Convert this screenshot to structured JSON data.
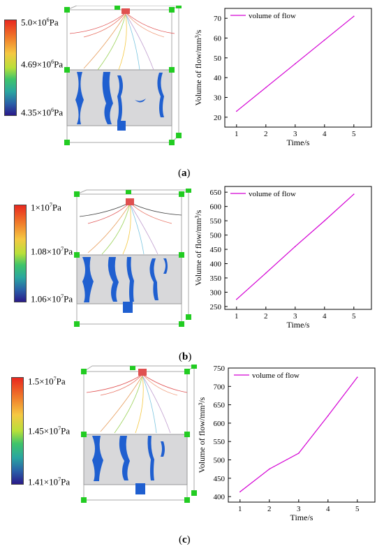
{
  "panels": [
    {
      "label": "(a)",
      "label_letter": "a",
      "colorbar": {
        "top": "5.0×10",
        "top_exp": "6",
        "mid": "4.69×10",
        "mid_exp": "6",
        "bottom": "4.35×10",
        "bottom_exp": "6",
        "unit": "Pa"
      }
    },
    {
      "label": "(b)",
      "label_letter": "b",
      "colorbar": {
        "top": "1×10",
        "top_exp": "7",
        "mid": "1.08×10",
        "mid_exp": "7",
        "bottom": "1.06×10",
        "bottom_exp": "7",
        "unit": "Pa"
      }
    },
    {
      "label": "(c)",
      "label_letter": "c",
      "colorbar": {
        "top": "1.5×10",
        "top_exp": "7",
        "mid": "1.45×10",
        "mid_exp": "7",
        "bottom": "1.41×10",
        "bottom_exp": "7",
        "unit": "Pa"
      }
    }
  ],
  "chart_data": [
    {
      "type": "line",
      "xlabel": "Time/s",
      "ylabel": "Volume of flow/mm³/s",
      "x": [
        1,
        2,
        3,
        4,
        5
      ],
      "xticks": [
        1,
        2,
        3,
        4,
        5
      ],
      "yticks": [
        20,
        30,
        40,
        50,
        60,
        70
      ],
      "ylim": [
        15,
        75
      ],
      "xlim": [
        0.6,
        5.6
      ],
      "series": [
        {
          "name": "volume of flow",
          "values": [
            23,
            35,
            47,
            59,
            71
          ],
          "color": "#d400d4"
        }
      ],
      "legend": "top-left"
    },
    {
      "type": "line",
      "xlabel": "Time/s",
      "ylabel": "Volume of flow/mm³/s",
      "x": [
        1,
        2,
        3,
        4,
        5
      ],
      "xticks": [
        1,
        2,
        3,
        4,
        5
      ],
      "yticks": [
        250,
        300,
        350,
        400,
        450,
        500,
        550,
        600,
        650
      ],
      "ylim": [
        240,
        670
      ],
      "xlim": [
        0.6,
        5.6
      ],
      "series": [
        {
          "name": "volume of flow",
          "values": [
            275,
            367,
            460,
            550,
            643
          ],
          "color": "#d400d4"
        }
      ],
      "legend": "top-left"
    },
    {
      "type": "line",
      "xlabel": "Time/s",
      "ylabel": "Volume of flow/mm³/s",
      "x": [
        1,
        2,
        3,
        4,
        5
      ],
      "xticks": [
        1,
        2,
        3,
        4,
        5
      ],
      "yticks": [
        400,
        450,
        500,
        550,
        600,
        650,
        700,
        750
      ],
      "ylim": [
        385,
        750
      ],
      "xlim": [
        0.6,
        5.6
      ],
      "series": [
        {
          "name": "volume of flow",
          "values": [
            413,
            475,
            518,
            620,
            725
          ],
          "color": "#d400d4"
        }
      ],
      "legend": "top-left"
    }
  ]
}
